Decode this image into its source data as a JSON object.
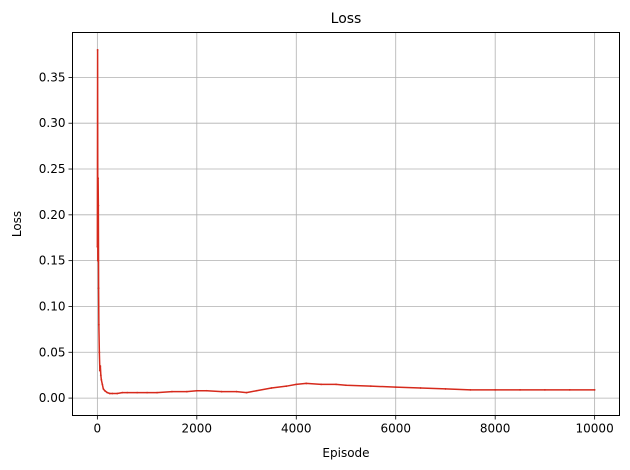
{
  "chart_data": {
    "type": "line",
    "title": "Loss",
    "xlabel": "Episode",
    "ylabel": "Loss",
    "xlim": [
      -500,
      10500
    ],
    "ylim": [
      -0.019,
      0.399
    ],
    "xticks": [
      0,
      2000,
      4000,
      6000,
      8000,
      10000
    ],
    "xtick_labels": [
      "0",
      "2000",
      "4000",
      "6000",
      "8000",
      "10000"
    ],
    "yticks": [
      0.0,
      0.05,
      0.1,
      0.15,
      0.2,
      0.25,
      0.3,
      0.35
    ],
    "ytick_labels": [
      "0.00",
      "0.05",
      "0.10",
      "0.15",
      "0.20",
      "0.25",
      "0.30",
      "0.35"
    ],
    "grid": true,
    "series": [
      {
        "color": "#d62a1c",
        "x": [
          0,
          5,
          10,
          15,
          20,
          25,
          30,
          40,
          50,
          60,
          70,
          80,
          100,
          120,
          150,
          200,
          250,
          300,
          400,
          500,
          600,
          800,
          1000,
          1200,
          1500,
          1800,
          2000,
          2200,
          2500,
          2800,
          3000,
          3200,
          3500,
          3800,
          4000,
          4200,
          4500,
          4800,
          5000,
          5500,
          6000,
          6500,
          7000,
          7500,
          8000,
          8500,
          9000,
          9500,
          10000
        ],
        "values": [
          0.165,
          0.38,
          0.15,
          0.24,
          0.21,
          0.12,
          0.08,
          0.05,
          0.03,
          0.035,
          0.025,
          0.02,
          0.015,
          0.01,
          0.008,
          0.006,
          0.005,
          0.005,
          0.005,
          0.006,
          0.006,
          0.006,
          0.006,
          0.006,
          0.007,
          0.007,
          0.008,
          0.008,
          0.007,
          0.007,
          0.006,
          0.008,
          0.011,
          0.013,
          0.015,
          0.016,
          0.015,
          0.015,
          0.014,
          0.013,
          0.012,
          0.011,
          0.01,
          0.009,
          0.009,
          0.009,
          0.009,
          0.009,
          0.009
        ]
      }
    ]
  }
}
